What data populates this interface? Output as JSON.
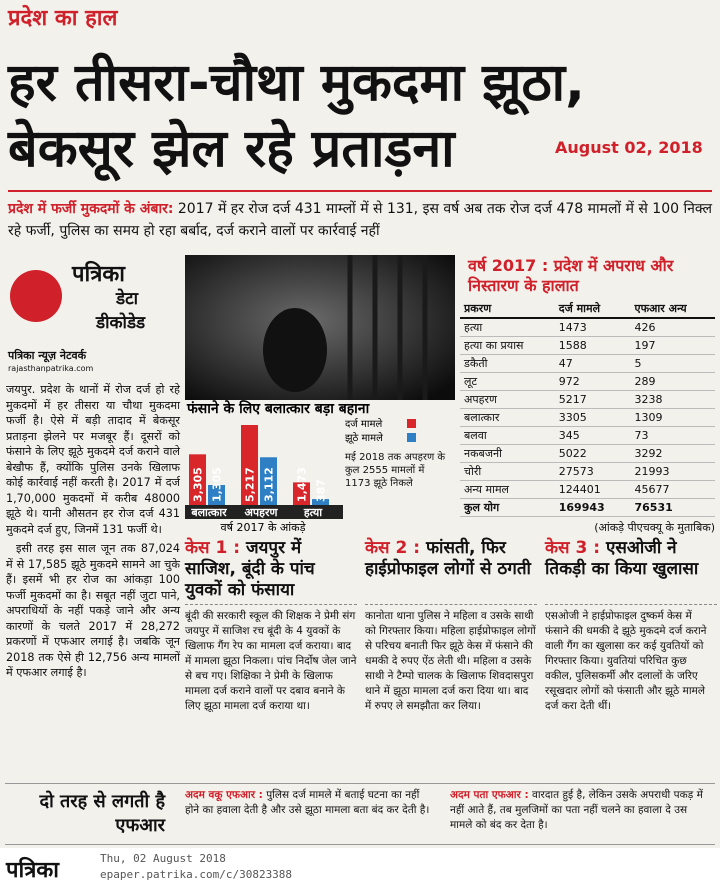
{
  "header": {
    "section": "प्रदेश का हाल",
    "headline": [
      "हर तीसरा-चौथा मुकदमा झूठा,",
      "बेकसूर झेल रहे प्रताड़ना"
    ],
    "date": "August 02, 2018"
  },
  "summary": {
    "lead": "प्रदेश में फर्जी मुकदमों के अंबार:",
    "text": "2017 में हर रोज दर्ज 431 माम्लों में से 131, इस वर्ष अब तक रोज दर्ज 478 मामलों में से 100 निक्ल रहे फर्जी, पुलिस का समय हो रहा बर्बाद, दर्ज कराने वालों पर कार्रवाई नहीं"
  },
  "logo": {
    "brand": "पत्रिका",
    "line1": "डेटा",
    "line2": "डीकोडेड"
  },
  "byline": {
    "network": "पत्रिका न्यूज़ नेटवर्क",
    "site": "rajasthanpatrika.com"
  },
  "body": [
    "जयपुर. प्रदेश के थानों में रोज दर्ज हो रहे मुकदमों में हर तीसरा या चौथा मुकदमा फर्जी है। ऐसे में बड़ी तादाद में बेकसूर प्रताड़ना झेलने पर मजबूर हैं। दूसरों को फंसाने के लिए झूठे मुकदमे दर्ज कराने वाले बेखौफ हैं, क्योंकि पुलिस उनके खिलाफ कोई कार्रवाई नहीं करती है। 2017 में दर्ज 1,70,000 मुकदमों में करीब 48000 झूठे थे। यानी औसतन हर रोज दर्ज 431 मुकदमे दर्ज हुए, जिनमें 131 फर्जी थे।",
    "इसी तरह इस साल जून तक 87,024 में से 17,585 झूठे मुकदमे सामने आ चुके हैं। इसमें भी हर रोज का आंकड़ा 100 फर्जी मुकदमों का है। सबूत नहीं जुटा पाने, अपराधियों के नहीं पकड़े जाने और अन्य कारणों के चलते 2017 में 28,272 प्रकरणों में एफआर लगाई है। जबकि जून 2018 तक ऐसे ही 12,756 अन्य मामलों में एफआर लगाई है।"
  ],
  "chart": {
    "type": "bar",
    "title": "फंसाने के लिए बलात्कार बड़ा बहाना",
    "categories": [
      "बलात्कार",
      "अपहरण",
      "हत्या"
    ],
    "series": [
      {
        "name": "दर्ज मामले",
        "color": "#d8262b",
        "values": [
          3305,
          5217,
          1473
        ],
        "value_labels": [
          "3,305",
          "5,217",
          "1,473"
        ]
      },
      {
        "name": "झूठे मामले",
        "color": "#2e7fc4",
        "values": [
          1305,
          3112,
          387
        ],
        "value_labels": [
          "1,305",
          "3,112",
          "387"
        ]
      }
    ],
    "note": "मई 2018 तक अपहरण के कुल 2555 मामलों में 1173 झूठे निकले",
    "caption": "वर्ष 2017 के आंकड़े"
  },
  "table": {
    "title": "वर्ष 2017 : प्रदेश में अपराध और निस्तारण के हालात",
    "columns": [
      "प्रकरण",
      "दर्ज मामले",
      "एफआर अन्य"
    ],
    "rows": [
      [
        "हत्या",
        "1473",
        "426"
      ],
      [
        "हत्या का प्रयास",
        "1588",
        "197"
      ],
      [
        "डकैती",
        "47",
        "5"
      ],
      [
        "लूट",
        "972",
        "289"
      ],
      [
        "अपहरण",
        "5217",
        "3238"
      ],
      [
        "बलात्कार",
        "3305",
        "1309"
      ],
      [
        "बलवा",
        "345",
        "73"
      ],
      [
        "नकबजनी",
        "5022",
        "3292"
      ],
      [
        "चोरी",
        "27573",
        "21993"
      ],
      [
        "अन्य मामल",
        "124401",
        "45677"
      ],
      [
        "कुल योग",
        "169943",
        "76531"
      ]
    ],
    "source": "(आंकड़े पीएचक्यू के मुताबिक)"
  },
  "cases": [
    {
      "label": "केस 1 :",
      "title": "जयपुर में साजिश, बूंदी के पांच युवकों को फंसाया",
      "text": "बूंदी की सरकारी स्कूल की शिक्षक ने प्रेमी संग जयपुर में साजिश रच बूंदी के 4 युवकों के खिलाफ गैंग रेप का मामला दर्ज कराया। बाद में मामला झूठा निकला। पांच निर्दोष जेल जाने से बच गए। शिक्षिका ने प्रेमी के खिलाफ मामला दर्ज कराने वालों पर दबाव बनाने के लिए झूठा मामला दर्ज कराया था।"
    },
    {
      "label": "केस 2 :",
      "title": "फांसती, फिर हाईप्रोफाइल लोगों से ठगती",
      "text": "कानोता थाना पुलिस ने महिला व उसके साथी को गिरफ्तार किया। महिला हाईप्रोफाइल लोगों से परिचय बनाती फिर झूठे केस में फंसाने की धमकी दे रुपए ऐंठ लेती थी। महिला व उसके साथी ने टैम्पो चालक के खिलाफ शिवदासपुरा थाने में झूठा मामला दर्ज करा दिया था। बाद में रुपए ले समझौता कर लिया।"
    },
    {
      "label": "केस 3 :",
      "title": "एसओजी ने तिकड़ी का किया खुलासा",
      "text": "एसओजी ने हाईप्रोफाइल दुष्कर्म केस में फंसाने की धमकी दे झूठे मुकदमे दर्ज कराने वाली गैंग का खुलासा कर कई युवतियों को गिरफ्तार किया। युवतियां परिचित कुछ वकील, पुलिसकर्मी और दलालों के जरिए रसूखदार लोगों को फंसाती और झूठे मामले दर्ज करा देती थीं।"
    }
  ],
  "footer": {
    "title": "दो तरह से लगती है एफआर",
    "items": [
      {
        "label": "अदम वकू एफआर :",
        "text": "पुलिस दर्ज मामले में बताई घटना का नहीं होने का हवाला देती है और उसे झूठा मामला बता बंद कर देती है।"
      },
      {
        "label": "अदम पता एफआर :",
        "text": "वारदात हुई है, लेकिन उसके अपराधी पकड़ में नहीं आते हैं, तब मुलजिमों का पता नहीं चलने का हवाला दे उस मामले को बंद कर देता है।"
      }
    ]
  },
  "epaper": {
    "brand": "पत्रिका",
    "date": "Thu, 02 August 2018",
    "url": "epaper.patrika.com/c/30823388"
  }
}
